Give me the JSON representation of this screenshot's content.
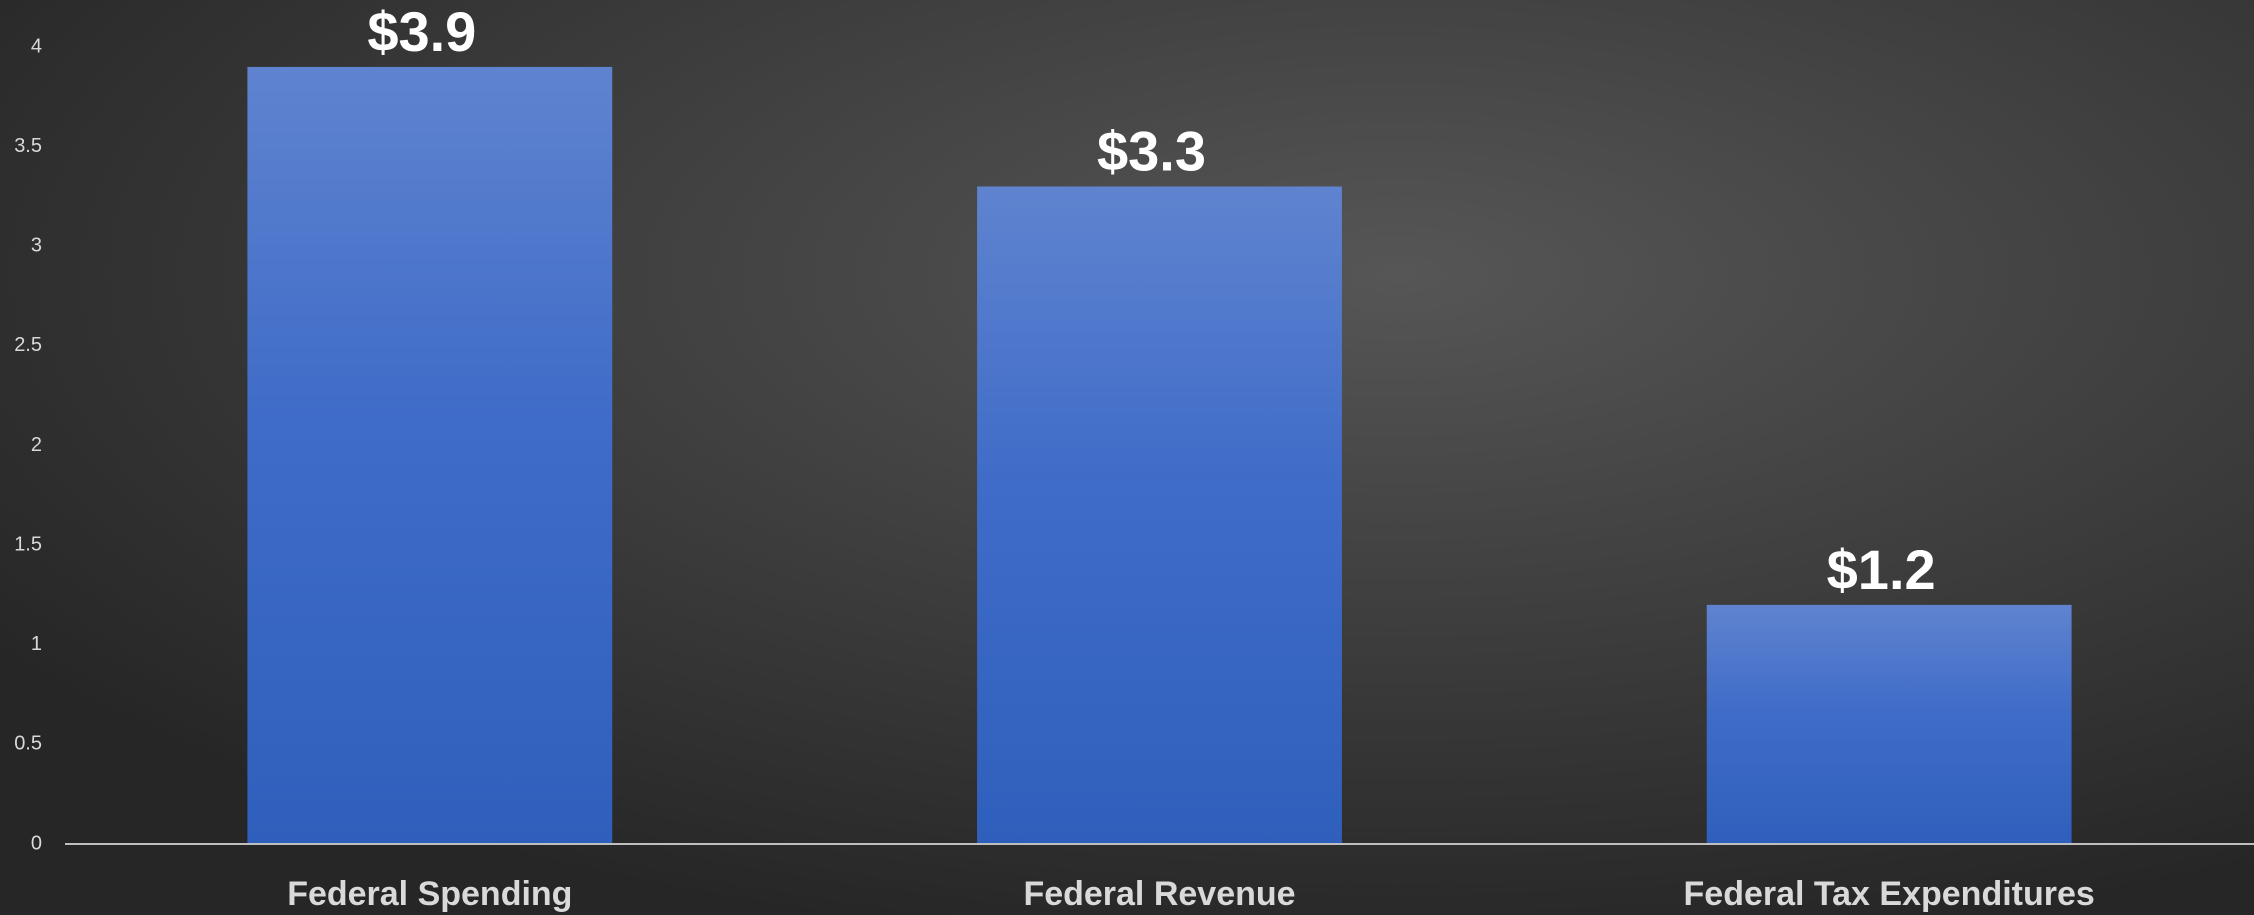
{
  "chart_data": {
    "type": "bar",
    "categories": [
      "Federal Spending",
      "Federal Revenue",
      "Federal Tax Expenditures"
    ],
    "values": [
      3.9,
      3.3,
      1.2
    ],
    "value_labels": [
      "$3.9",
      "$3.3",
      "$1.2"
    ],
    "color": "#4470c8",
    "ylim": [
      0,
      4
    ],
    "yticks": [
      0,
      0.5,
      1,
      1.5,
      2,
      2.5,
      3,
      3.5,
      4
    ],
    "grid": false
  }
}
